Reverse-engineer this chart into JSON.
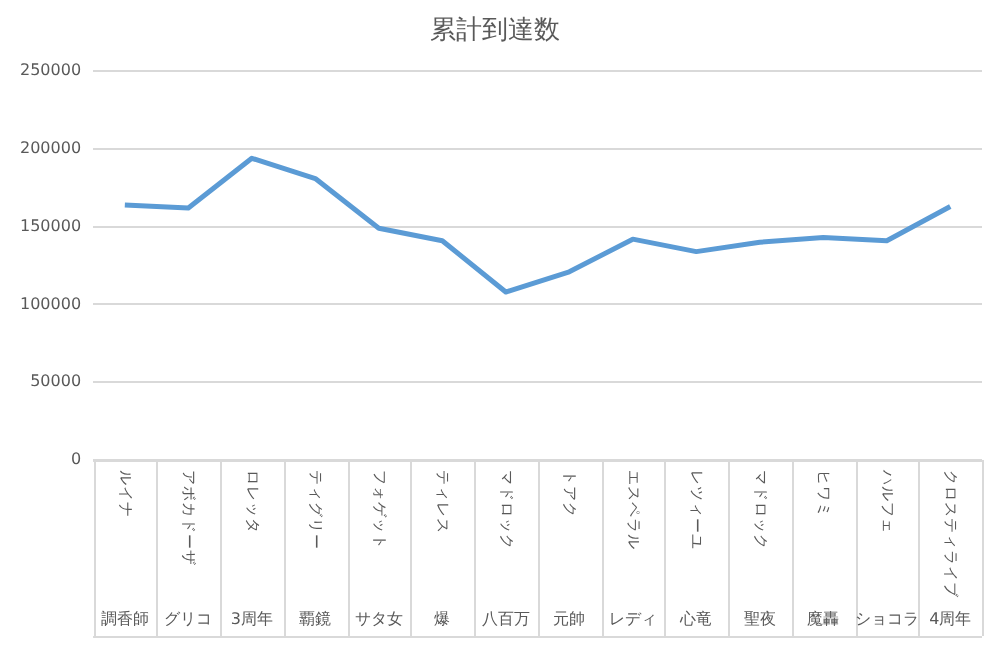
{
  "chart_data": {
    "type": "line",
    "title": "累計到達数",
    "categories": [
      [
        "ルイナ",
        "調香師"
      ],
      [
        "アボカドーザ",
        "グリコ"
      ],
      [
        "ロレッタ",
        "3周年"
      ],
      [
        "ティグリー",
        "覇鏡"
      ],
      [
        "フォゲット",
        "サタ女"
      ],
      [
        "ティレス",
        "爆"
      ],
      [
        "マドロック",
        "八百万"
      ],
      [
        "トアク",
        "元帥"
      ],
      [
        "エスペラル",
        "レディ"
      ],
      [
        "レツィーユ",
        "心竜"
      ],
      [
        "マドロック",
        "聖夜"
      ],
      [
        "ヒワミ",
        "魔轟"
      ],
      [
        "ハルフェ",
        "ショコラ"
      ],
      [
        "クロスティライブ",
        "4周年"
      ]
    ],
    "series": [
      {
        "color": "#5b9bd5",
        "values": [
          164000,
          162000,
          194000,
          181000,
          149000,
          141000,
          108000,
          121000,
          142000,
          134000,
          140000,
          143000,
          141000,
          163000
        ]
      }
    ],
    "ylim": [
      0,
      250000
    ],
    "yticks": [
      0,
      50000,
      100000,
      150000,
      200000,
      250000
    ],
    "grid": "y",
    "legend": false,
    "marker": "none"
  }
}
